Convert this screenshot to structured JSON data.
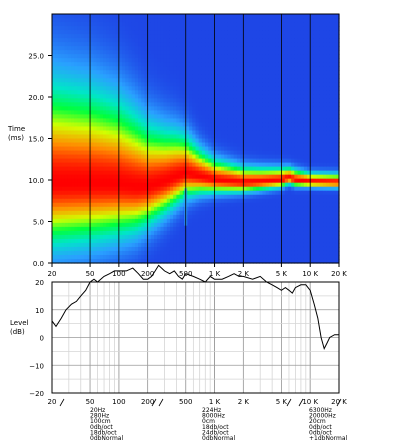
{
  "chart_data": [
    {
      "type": "heatmap",
      "title": "",
      "xlabel": "",
      "ylabel": "Time\n(ms)",
      "x_scale": "log",
      "xlim": [
        20,
        20000
      ],
      "ylim": [
        0,
        30
      ],
      "x_ticks": [
        20,
        50,
        100,
        200,
        500,
        1000,
        2000,
        5000,
        10000,
        20000
      ],
      "x_tick_labels": [
        "20",
        "50",
        "100",
        "200",
        "500",
        "1 K",
        "2 K",
        "5 K",
        "10 K",
        "20 K"
      ],
      "y_ticks": [
        0,
        5,
        10,
        15,
        20,
        25
      ],
      "y_tick_labels": [
        "0.0",
        "5.0",
        "10.0",
        "15.0",
        "20.0",
        "25.0"
      ],
      "grid": "vertical",
      "colormap": [
        "#1e46e6",
        "#2aa0ff",
        "#00e6c8",
        "#00ff3c",
        "#d2ff00",
        "#ff8c00",
        "#ff0000"
      ],
      "ridge_x": [
        20,
        50,
        100,
        150,
        200,
        300,
        400,
        500,
        700,
        1000,
        2000,
        3000,
        5000,
        6000,
        7000,
        10000,
        20000
      ],
      "ridge_y": [
        9.6,
        9.6,
        9.5,
        9.2,
        9.2,
        9.8,
        10.4,
        10.8,
        10.4,
        10.0,
        9.7,
        9.8,
        10.0,
        10.3,
        10.0,
        9.8,
        9.7
      ],
      "ridge_spread_ms": [
        5.8,
        5.4,
        4.8,
        4.2,
        3.6,
        3.0,
        2.6,
        2.2,
        1.6,
        1.2,
        0.9,
        0.8,
        0.7,
        0.6,
        0.6,
        0.5,
        0.5
      ],
      "streak_x": [
        500,
        500
      ],
      "streak_y": [
        4.5,
        9.0
      ]
    },
    {
      "type": "line",
      "title": "",
      "xlabel": "",
      "ylabel": "Level\n(dB)",
      "x_scale": "log",
      "xlim": [
        20,
        20000
      ],
      "ylim": [
        -20,
        20
      ],
      "x_ticks": [
        20,
        50,
        100,
        200,
        500,
        1000,
        2000,
        5000,
        10000,
        20000
      ],
      "x_tick_labels": [
        "20",
        "50",
        "100",
        "200",
        "500",
        "1 K",
        "2 K",
        "5 K",
        "10 K",
        "20 K"
      ],
      "y_ticks": [
        -20,
        -10,
        0,
        10,
        20
      ],
      "y_tick_labels": [
        "−20",
        "−10",
        "0",
        "10",
        "20"
      ],
      "grid": true,
      "series": [
        {
          "x": [
            20,
            22,
            25,
            28,
            32,
            36,
            40,
            45,
            50,
            55,
            60,
            70,
            80,
            90,
            100,
            120,
            140,
            160,
            180,
            200,
            220,
            240,
            260,
            280,
            300,
            340,
            380,
            420,
            460,
            500,
            600,
            700,
            800,
            900,
            1000,
            1200,
            1400,
            1600,
            1800,
            2000,
            2500,
            3000,
            3500,
            4000,
            4500,
            5000,
            5500,
            6000,
            6500,
            7000,
            8000,
            9000,
            10000,
            11000,
            12000,
            13000,
            14000,
            15000,
            16000,
            18000,
            20000
          ],
          "y": [
            6,
            4,
            7,
            10,
            12,
            13,
            15,
            17,
            20,
            21,
            20,
            22,
            23,
            24,
            24,
            24,
            25,
            23,
            21,
            21,
            22,
            24,
            26,
            25,
            24,
            23,
            24,
            22,
            21,
            23,
            22,
            21,
            20,
            22,
            21,
            21,
            22,
            23,
            22,
            22,
            21,
            22,
            20,
            19,
            18,
            17,
            18,
            17,
            16,
            18,
            19,
            19,
            17,
            12,
            7,
            0,
            -4,
            -2,
            0,
            1,
            1
          ]
        }
      ]
    }
  ],
  "filter_labels": {
    "group_a": [
      "20Hz",
      "280Hz",
      "100cm",
      "0db/oct",
      "18db/oct",
      "0dbNormal"
    ],
    "group_b": [
      "224Hz",
      "8000Hz",
      "0cm",
      "18db/oct",
      "24db/oct",
      "0dbNormal"
    ],
    "group_c": [
      "6300Hz",
      "20000Hz",
      "20cm",
      "0db/oct",
      "0db/oct",
      "+1dbNormal"
    ]
  }
}
